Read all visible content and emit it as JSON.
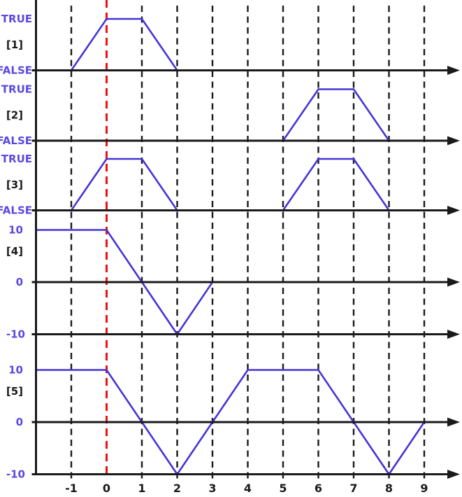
{
  "chart_data": {
    "type": "line",
    "subtype": "timing-diagram",
    "title": "",
    "x_ticks": [
      -1,
      0,
      1,
      2,
      3,
      4,
      5,
      6,
      7,
      8,
      9
    ],
    "x_range": [
      -2,
      9
    ],
    "marker_line_x": 0,
    "grid": true,
    "colors": {
      "signal": "#4534d6",
      "value_label": "#5a49e0",
      "axis": "#1a1a1a",
      "grid_line": "#1a1a1a",
      "marker_line": "#ee1111",
      "tick_label": "#1a1a1a"
    },
    "rows": [
      {
        "label": "[1]",
        "kind": "digital",
        "high_label": "TRUE",
        "low_label": "FALSE",
        "points": [
          [
            -2,
            0
          ],
          [
            -1,
            0
          ],
          [
            0,
            1
          ],
          [
            1,
            1
          ],
          [
            2,
            0
          ],
          [
            9,
            0
          ]
        ]
      },
      {
        "label": "[2]",
        "kind": "digital",
        "high_label": "TRUE",
        "low_label": "FALSE",
        "points": [
          [
            -2,
            0
          ],
          [
            5,
            0
          ],
          [
            6,
            1
          ],
          [
            7,
            1
          ],
          [
            8,
            0
          ],
          [
            9,
            0
          ]
        ]
      },
      {
        "label": "[3]",
        "kind": "digital",
        "high_label": "TRUE",
        "low_label": "FALSE",
        "points": [
          [
            -2,
            0
          ],
          [
            -1,
            0
          ],
          [
            0,
            1
          ],
          [
            1,
            1
          ],
          [
            2,
            0
          ],
          [
            5,
            0
          ],
          [
            6,
            1
          ],
          [
            7,
            1
          ],
          [
            8,
            0
          ],
          [
            9,
            0
          ]
        ]
      },
      {
        "label": "[4]",
        "kind": "analog",
        "high_label": "10",
        "zero_label": "0",
        "low_label": "-10",
        "y_range": [
          -10,
          10
        ],
        "points": [
          [
            -2,
            10
          ],
          [
            0,
            10
          ],
          [
            2,
            -10
          ],
          [
            3,
            0
          ],
          [
            9,
            0
          ]
        ]
      },
      {
        "label": "[5]",
        "kind": "analog",
        "high_label": "10",
        "zero_label": "0",
        "low_label": "-10",
        "y_range": [
          -10,
          10
        ],
        "points": [
          [
            -2,
            10
          ],
          [
            0,
            10
          ],
          [
            2,
            -10
          ],
          [
            4,
            10
          ],
          [
            6,
            10
          ],
          [
            8,
            -10
          ],
          [
            9,
            0
          ]
        ]
      }
    ]
  }
}
